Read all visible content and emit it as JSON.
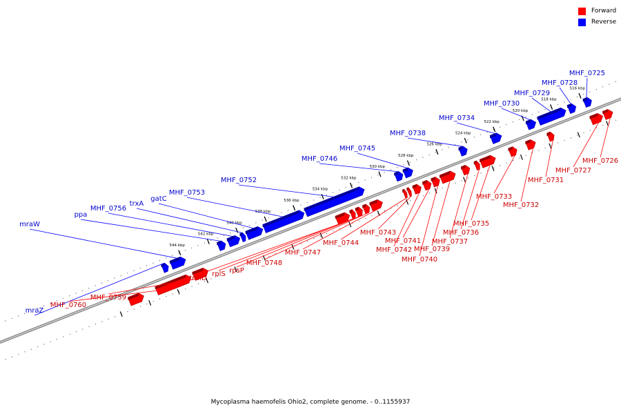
{
  "legend": [
    {
      "label": "Forward",
      "color": "#ff0000"
    },
    {
      "label": "Reverse",
      "color": "#0000ff"
    }
  ],
  "footer": {
    "caption": "Mycoplasma haemofelis Ohio2, complete genome. - 0..1155937"
  },
  "colors": {
    "forward": "#ff0000",
    "reverse": "#0000ff",
    "backbone": "#8a8a8a",
    "tick": "#000000"
  },
  "ticks": [
    {
      "kbp": 516,
      "label": "516 kbp"
    },
    {
      "kbp": 518,
      "label": "518 kbp"
    },
    {
      "kbp": 520,
      "label": "520 kbp"
    },
    {
      "kbp": 522,
      "label": "522 kbp"
    },
    {
      "kbp": 524,
      "label": "524 kbp"
    },
    {
      "kbp": 526,
      "label": "526 kbp"
    },
    {
      "kbp": 528,
      "label": "528 kbp"
    },
    {
      "kbp": 530,
      "label": "530 kbp"
    },
    {
      "kbp": 532,
      "label": "532 kbp"
    },
    {
      "kbp": 534,
      "label": "534 kbp"
    },
    {
      "kbp": 536,
      "label": "536 kbp"
    },
    {
      "kbp": 538,
      "label": "538 kbp"
    },
    {
      "kbp": 540,
      "label": "540 kbp"
    },
    {
      "kbp": 542,
      "label": "542 kbp"
    },
    {
      "kbp": 544,
      "label": "544 kbp"
    }
  ],
  "reverse_genes": [
    {
      "label": "MHF_0725",
      "start": 515.4,
      "end": 515.9
    },
    {
      "label": "MHF_0728",
      "start": 516.5,
      "end": 517.0
    },
    {
      "label": "MHF_0729",
      "start": 517.2,
      "end": 519.1
    },
    {
      "label": "MHF_0730",
      "start": 519.3,
      "end": 519.9
    },
    {
      "label": "MHF_0734",
      "start": 521.7,
      "end": 522.4
    },
    {
      "label": "MHF_0738",
      "start": 524.1,
      "end": 524.6
    },
    {
      "label": "MHF_0745",
      "start": 527.9,
      "end": 528.5
    },
    {
      "label": "MHF_0746",
      "start": 528.6,
      "end": 529.1
    },
    {
      "label": "MHF_0752",
      "start": 531.3,
      "end": 535.4
    },
    {
      "label": "MHF_0753",
      "start": 535.5,
      "end": 538.3
    },
    {
      "label": "gatC",
      "start": 538.4,
      "end": 539.5
    },
    {
      "label": "trxA",
      "start": 539.6,
      "end": 539.9
    },
    {
      "label": "MHF_0756",
      "start": 540.0,
      "end": 540.8
    },
    {
      "label": "ppa",
      "start": 541.0,
      "end": 541.5
    },
    {
      "label": "mraW",
      "start": 543.8,
      "end": 544.8
    },
    {
      "label": "mraZ",
      "start": 545.0,
      "end": 545.4
    }
  ],
  "forward_genes": [
    {
      "label": "MHF_0726",
      "start": 514.4,
      "end": 515.0
    },
    {
      "label": "MHF_0727",
      "start": 515.1,
      "end": 515.9
    },
    {
      "label": "MHF_0731",
      "start": 518.5,
      "end": 518.9
    },
    {
      "label": "MHF_0732",
      "start": 519.8,
      "end": 520.4
    },
    {
      "label": "MHF_0733",
      "start": 521.1,
      "end": 521.6
    },
    {
      "label": "MHF_0735",
      "start": 522.6,
      "end": 523.6
    },
    {
      "label": "MHF_0736",
      "start": 523.7,
      "end": 524.0
    },
    {
      "label": "MHF_0737",
      "start": 524.4,
      "end": 524.9
    },
    {
      "label": "MHF_0739",
      "start": 525.4,
      "end": 526.4
    },
    {
      "label": "MHF_0740",
      "start": 526.5,
      "end": 527.0
    },
    {
      "label": "MHF_0741",
      "start": 527.1,
      "end": 527.6
    },
    {
      "label": "MHF_0742",
      "start": 527.8,
      "end": 528.3
    },
    {
      "label": "MHF_0743",
      "start": 528.5,
      "end": 528.7
    },
    {
      "label": "MHF_0744",
      "start": 528.8,
      "end": 529.0
    },
    {
      "label": "MHF_0747",
      "start": 530.5,
      "end": 531.3
    },
    {
      "label": "MHF_0748",
      "start": 531.4,
      "end": 531.8
    },
    {
      "label": "rpsP",
      "start": 531.9,
      "end": 532.3
    },
    {
      "label": "rplS",
      "start": 532.4,
      "end": 532.7
    },
    {
      "label": "trmD",
      "start": 532.8,
      "end": 533.7
    },
    {
      "label": "MHF_0759",
      "start": 542.7,
      "end": 543.7
    },
    {
      "label": "MHF_0760",
      "start": 543.9,
      "end": 546.3
    },
    {
      "label": "",
      "start": 547.2,
      "end": 548.2
    }
  ]
}
